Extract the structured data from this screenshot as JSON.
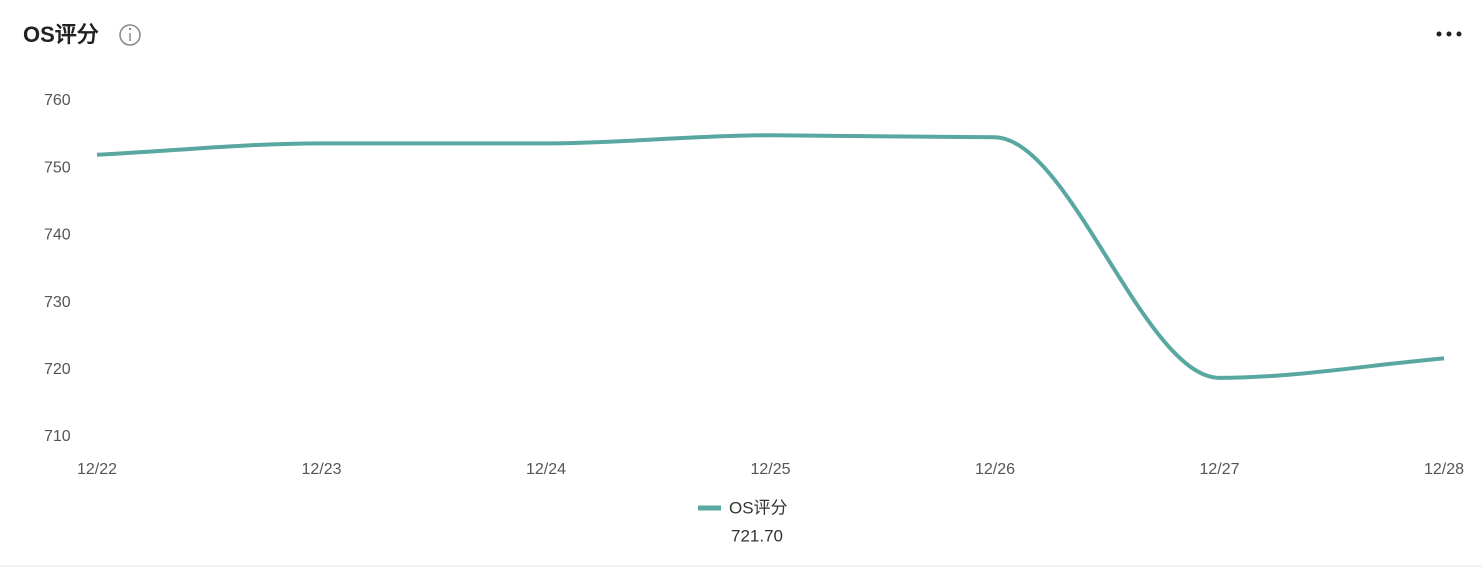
{
  "chart_data": {
    "type": "line",
    "title": "OS评分",
    "categories": [
      "12/22",
      "12/23",
      "12/24",
      "12/25",
      "12/26",
      "12/27",
      "12/28"
    ],
    "series": [
      {
        "name": "OS评分",
        "color": "#58a7a0",
        "values": [
          752,
          753.7,
          753.7,
          754.9,
          754.6,
          718.8,
          721.7
        ],
        "value_labels": [
          null,
          null,
          null,
          null,
          null,
          null,
          "721.70"
        ]
      }
    ],
    "ylim": [
      710,
      760
    ],
    "yticks": [
      710,
      720,
      730,
      740,
      750,
      760
    ],
    "grid": false
  }
}
